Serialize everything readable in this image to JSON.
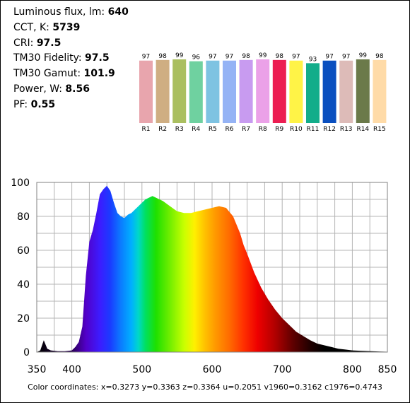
{
  "metrics": [
    {
      "label": "Luminous flux, lm:",
      "value": "640"
    },
    {
      "label": "CCT, K:",
      "value": "5739"
    },
    {
      "label": "CRI:",
      "value": "97.5"
    },
    {
      "label": "TM30 Fidelity:",
      "value": "97.5"
    },
    {
      "label": "TM30 Gamut:",
      "value": "101.9"
    },
    {
      "label": "Power, W:",
      "value": "8.56"
    },
    {
      "label": "PF:",
      "value": "0.55"
    }
  ],
  "coordinates_text": "Color coordinates: x=0.3273 y=0.3363 z=0.3364 u=0.2051 v1960=0.3162 c1976=0.4743",
  "chart_data": [
    {
      "type": "bar",
      "categories": [
        "R1",
        "R2",
        "R3",
        "R4",
        "R5",
        "R6",
        "R7",
        "R8",
        "R9",
        "R10",
        "R11",
        "R12",
        "R13",
        "R14",
        "R15"
      ],
      "values": [
        97,
        98,
        99,
        96,
        97,
        97,
        98,
        99,
        98,
        97,
        93,
        97,
        97,
        99,
        98
      ],
      "colors": [
        "#e8a5ad",
        "#cfae82",
        "#aabf60",
        "#6fd1a0",
        "#7ec3e2",
        "#95b3f5",
        "#c89bf0",
        "#eba1e8",
        "#ec1e52",
        "#fff347",
        "#12ad8a",
        "#0a4fbf",
        "#ddbbb8",
        "#6b7a4a",
        "#ffdba8"
      ]
    },
    {
      "type": "area",
      "xlim": [
        350,
        850
      ],
      "ylim": [
        0,
        100
      ],
      "xticks": [
        350,
        400,
        500,
        600,
        700,
        800,
        850
      ],
      "yticks": [
        0,
        20,
        40,
        60,
        80,
        100
      ],
      "grid": true,
      "x": [
        350,
        355,
        360,
        365,
        370,
        380,
        390,
        400,
        405,
        410,
        415,
        420,
        425,
        430,
        435,
        440,
        445,
        450,
        455,
        460,
        465,
        470,
        475,
        480,
        485,
        490,
        495,
        500,
        505,
        510,
        515,
        520,
        525,
        530,
        540,
        550,
        560,
        570,
        580,
        590,
        600,
        610,
        620,
        630,
        635,
        640,
        645,
        650,
        660,
        670,
        680,
        690,
        700,
        710,
        720,
        730,
        740,
        750,
        760,
        770,
        780,
        790,
        800,
        820,
        840,
        850
      ],
      "values": [
        0,
        1,
        7,
        2,
        1,
        0.5,
        0.5,
        1,
        3,
        6,
        15,
        45,
        65,
        72,
        82,
        93,
        96,
        98,
        95,
        88,
        82,
        80,
        79,
        81,
        82,
        84,
        86,
        88,
        90,
        91,
        92,
        91,
        90,
        89,
        86,
        83,
        82,
        82,
        83,
        84,
        85,
        86,
        85,
        80,
        75,
        70,
        63,
        58,
        47,
        38,
        31,
        25,
        20,
        16,
        12,
        9.5,
        7,
        5,
        4,
        3,
        2,
        1.5,
        1,
        0.6,
        0.3,
        0.2
      ]
    }
  ]
}
